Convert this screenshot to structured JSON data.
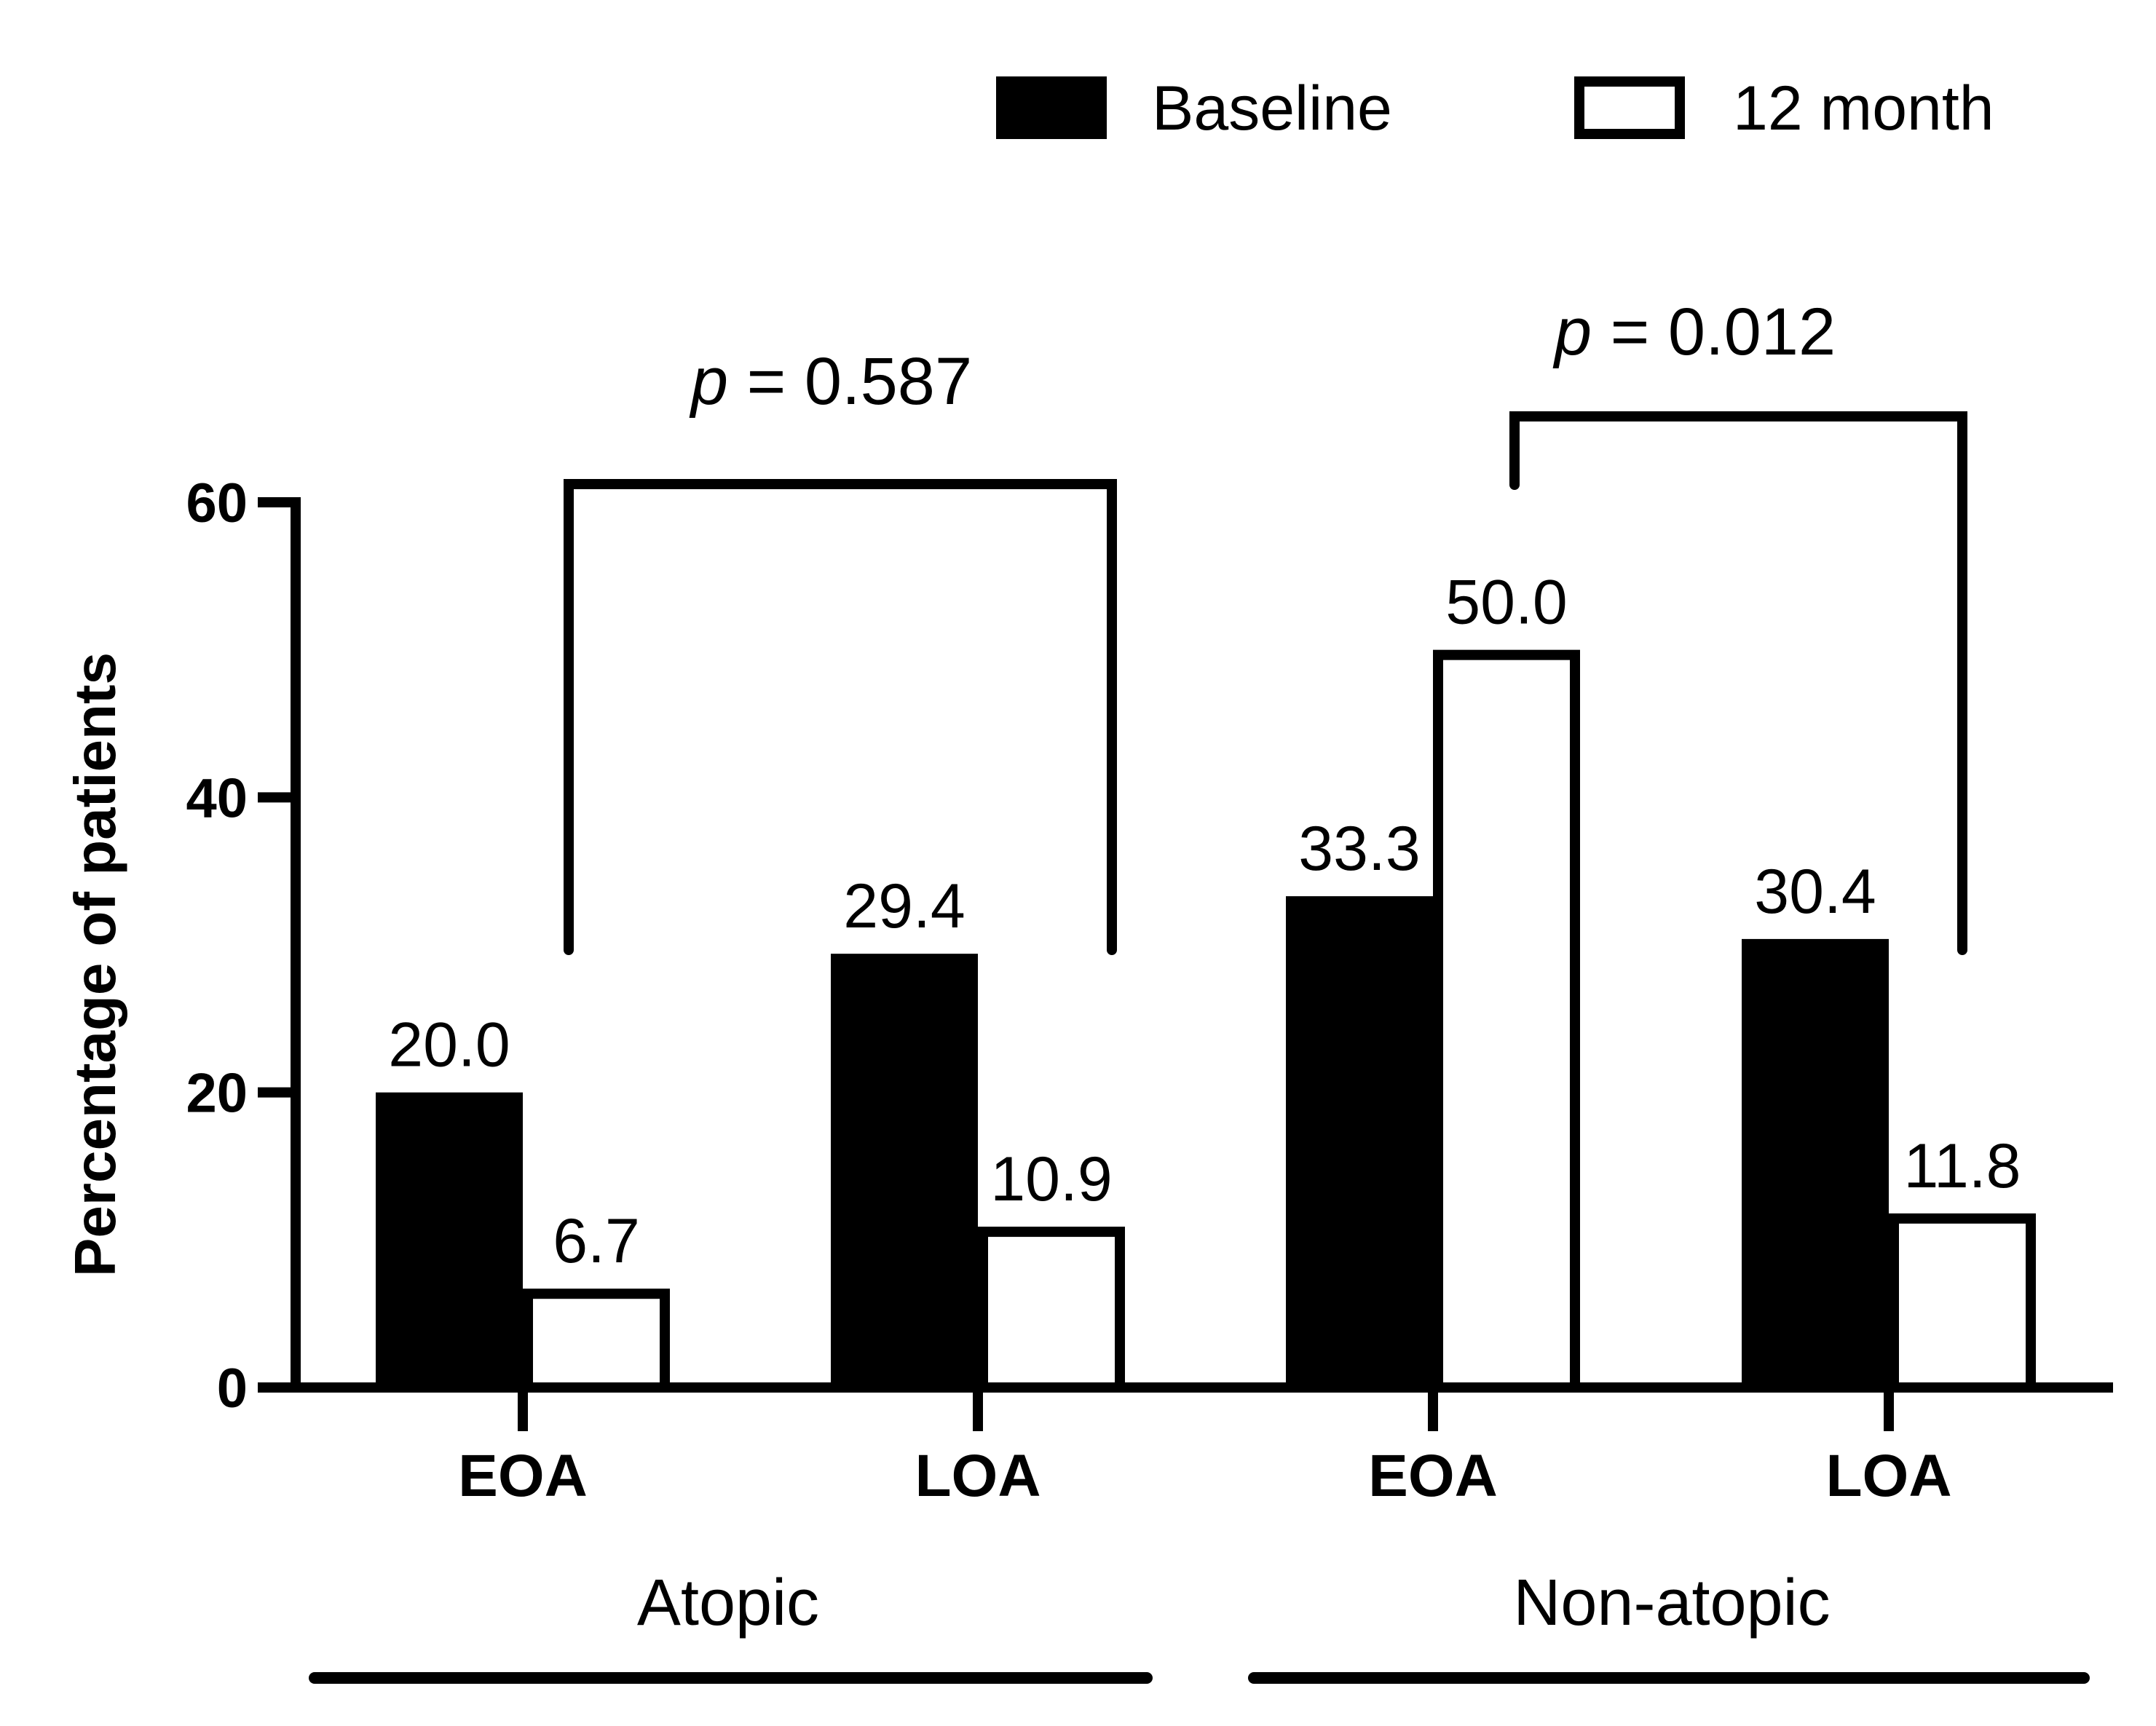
{
  "chart_data": {
    "type": "bar",
    "title": "",
    "xlabel": "",
    "ylabel": "Percentage of patients",
    "ylim": [
      0,
      60
    ],
    "yticks": [
      0,
      20,
      40,
      60
    ],
    "categories": [
      "EOA",
      "LOA",
      "EOA",
      "LOA"
    ],
    "groups": [
      {
        "label": "Atopic",
        "categories": [
          "EOA",
          "LOA"
        ]
      },
      {
        "label": "Non-atopic",
        "categories": [
          "EOA",
          "LOA"
        ]
      }
    ],
    "series": [
      {
        "name": "Baseline",
        "fill": "#000000",
        "values": [
          20.0,
          29.4,
          33.3,
          30.4
        ],
        "labels": [
          "20.0",
          "29.4",
          "33.3",
          "30.4"
        ]
      },
      {
        "name": "12 month",
        "fill": "#ffffff",
        "values": [
          6.7,
          10.9,
          50.0,
          11.8
        ],
        "labels": [
          "6.7",
          "10.9",
          "50.0",
          "11.8"
        ]
      }
    ],
    "annotations": [
      {
        "text_italic": "p",
        "text_rest": " = 0.587",
        "from_category": 0,
        "to_category": 1
      },
      {
        "text_italic": "p",
        "text_rest": " = 0.012",
        "from_category": 2,
        "to_category": 3
      }
    ],
    "legend": "top-right",
    "grid": false
  }
}
